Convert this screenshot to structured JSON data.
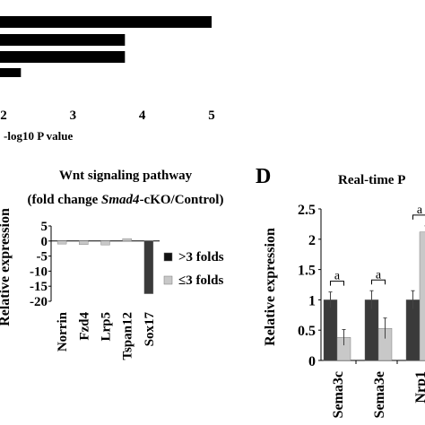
{
  "chart_data": [
    {
      "panel": "",
      "type": "bar",
      "orientation": "horizontal",
      "title": "",
      "xlabel": "-log10 P value",
      "ylabel": "",
      "x_ticks": [
        "2",
        "3",
        "4",
        "5"
      ],
      "xlim": [
        1.5,
        5.3
      ],
      "categories": [
        "",
        "",
        "",
        ""
      ],
      "values": [
        5.0,
        3.75,
        3.75,
        2.25
      ],
      "color": "#000000",
      "grid": false
    },
    {
      "panel": "",
      "type": "bar",
      "title": "Wnt signaling pathway",
      "subtitle_prefix": "(fold change ",
      "subtitle_italic": "Smad4",
      "subtitle_suffix": "-cKO/Control)",
      "ylabel": "Relative expression",
      "xlabel": "",
      "ylim": [
        -20,
        5
      ],
      "y_ticks": [
        "5",
        "0",
        "-5",
        "-10",
        "-15",
        "-20"
      ],
      "categories": [
        "Norrin",
        "Fzd4",
        "Lrp5",
        "Tspan12",
        "Sox17"
      ],
      "values": [
        -1.0,
        -1.2,
        -1.3,
        0.8,
        -17.5
      ],
      "bar_colors": [
        "#c8c8c8",
        "#c8c8c8",
        "#c8c8c8",
        "#c8c8c8",
        "#3a3a3a"
      ],
      "legend": [
        {
          "label": ">3 folds",
          "color": "#111111"
        },
        {
          "label": "≤3 folds",
          "color": "#c8c8c8"
        }
      ],
      "legend_position": "right",
      "grid": false
    },
    {
      "panel": "D",
      "type": "bar",
      "title": "Real-time P",
      "ylabel": "Relative expression",
      "xlabel": "",
      "ylim": [
        0,
        2.5
      ],
      "y_ticks": [
        "0",
        "0.5",
        "1",
        "1.5",
        "2",
        "2.5"
      ],
      "categories": [
        "Sema3c",
        "Sema3e",
        "Nrp1"
      ],
      "series": [
        {
          "values": [
            1.0,
            1.0,
            1.0
          ],
          "errors": [
            0.13,
            0.15,
            0.15
          ],
          "color": "#3a3a3a"
        },
        {
          "values": [
            0.38,
            0.53,
            2.12
          ],
          "errors": [
            0.13,
            0.17,
            0.1
          ],
          "color": "#c8c8c8"
        }
      ],
      "significance": [
        "a",
        "a",
        "a"
      ],
      "grid": false
    }
  ]
}
